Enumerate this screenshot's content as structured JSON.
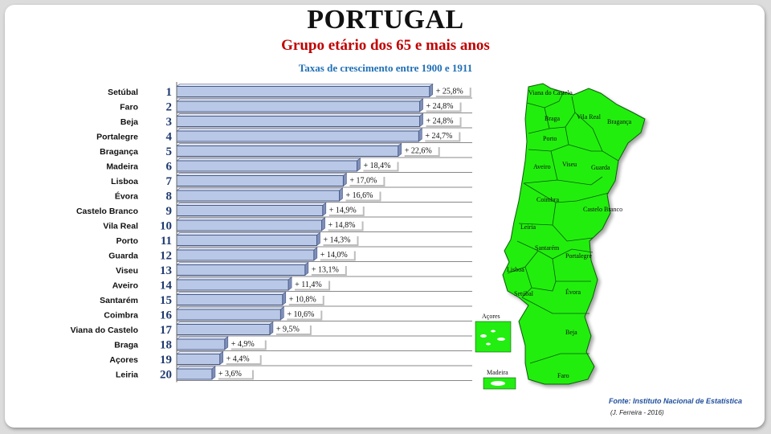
{
  "title": "PORTUGAL",
  "subtitle": "Grupo etário dos 65 e mais anos",
  "subtitle2": "Taxas de crescimento entre 1900 e 1911",
  "source": "Fonte: Instituto Nacional de Estatística",
  "author": "(J. Ferreira - 2016)",
  "colors": {
    "bar": "#b8c8e6",
    "bar_edge": "#4a5a8a",
    "title": "#111111",
    "subtitle": "#c00000",
    "subtitle2": "#1f6fb5",
    "map": "#22ee11"
  },
  "chart_data": {
    "type": "bar",
    "orientation": "horizontal",
    "categories": [
      "Setúbal",
      "Faro",
      "Beja",
      "Portalegre",
      "Bragança",
      "Madeira",
      "Lisboa",
      "Évora",
      "Castelo Branco",
      "Vila Real",
      "Porto",
      "Guarda",
      "Viseu",
      "Aveiro",
      "Santarém",
      "Coimbra",
      "Viana do Castelo",
      "Braga",
      "Açores",
      "Leiria"
    ],
    "ranks": [
      "1",
      "2",
      "3",
      "4",
      "5",
      "6",
      "7",
      "8",
      "9",
      "10",
      "11",
      "12",
      "13",
      "14",
      "15",
      "16",
      "17",
      "18",
      "19",
      "20"
    ],
    "values": [
      25.8,
      24.8,
      24.8,
      24.7,
      22.6,
      18.4,
      17.0,
      16.6,
      14.9,
      14.8,
      14.3,
      14.0,
      13.1,
      11.4,
      10.8,
      10.6,
      9.5,
      4.9,
      4.4,
      3.6
    ],
    "labels": [
      "+ 25,8%",
      "+ 24,8%",
      "+ 24,8%",
      "+ 24,7%",
      "+ 22,6%",
      "+ 18,4%",
      "+ 17,0%",
      "+ 16,6%",
      "+ 14,9%",
      "+ 14,8%",
      "+ 14,3%",
      "+ 14,0%",
      "+ 13,1%",
      "+ 11,4%",
      "+ 10,8%",
      "+ 10,6%",
      "+ 9,5%",
      "+ 4,9%",
      "+ 4,4%",
      "+ 3,6%"
    ],
    "xlim": [
      0,
      28
    ],
    "grid": true,
    "title": "Taxas de crescimento entre 1900 e 1911"
  },
  "map": {
    "districts": [
      "Viana do Castelo",
      "Braga",
      "Vila Real",
      "Bragança",
      "Porto",
      "Aveiro",
      "Viseu",
      "Guarda",
      "Coimbra",
      "Castelo Branco",
      "Leiria",
      "Santarém",
      "Portalegre",
      "Lisboa",
      "Évora",
      "Setúbal",
      "Beja",
      "Faro"
    ],
    "islands": [
      "Açores",
      "Madeira"
    ]
  }
}
